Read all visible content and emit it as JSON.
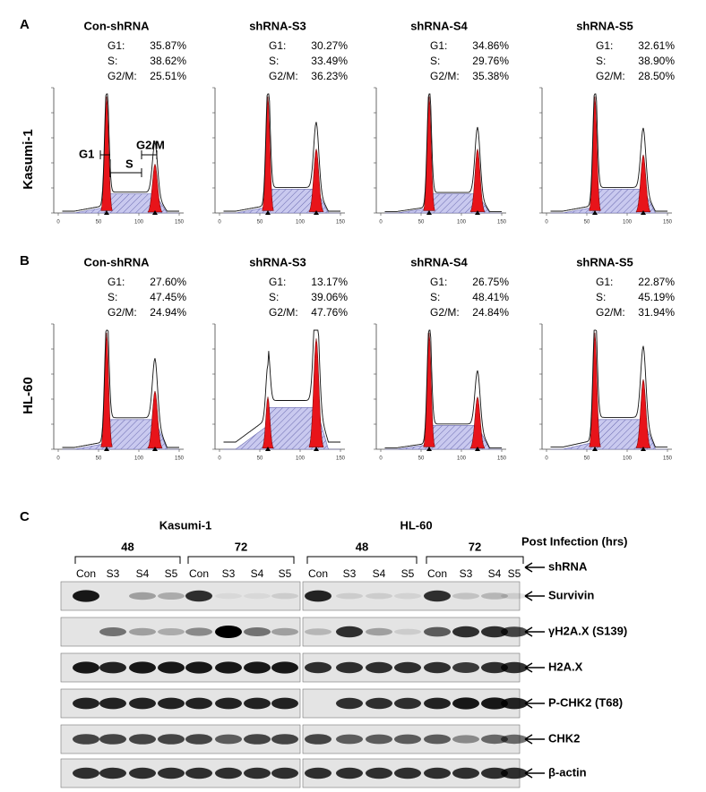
{
  "panel_a": {
    "label": "A",
    "row_label": "Kasumi-1",
    "plots": [
      {
        "title": "Con-shRNA",
        "stats": [
          [
            "G1:",
            "35.87%"
          ],
          [
            "S:",
            "38.62%"
          ],
          [
            "G2/M:",
            "25.51%"
          ]
        ]
      },
      {
        "title": "shRNA-S3",
        "stats": [
          [
            "G1:",
            "30.27%"
          ],
          [
            "S:",
            "33.49%"
          ],
          [
            "G2/M:",
            "36.23%"
          ]
        ]
      },
      {
        "title": "shRNA-S4",
        "stats": [
          [
            "G1:",
            "34.86%"
          ],
          [
            "S:",
            "29.76%"
          ],
          [
            "G2/M:",
            "35.38%"
          ]
        ]
      },
      {
        "title": "shRNA-S5",
        "stats": [
          [
            "G1:",
            "32.61%"
          ],
          [
            "S:",
            "38.90%"
          ],
          [
            "G2/M:",
            "28.50%"
          ]
        ]
      }
    ],
    "annotations": [
      "G1",
      "S",
      "G2/M"
    ]
  },
  "panel_b": {
    "label": "B",
    "row_label": "HL-60",
    "plots": [
      {
        "title": "Con-shRNA",
        "stats": [
          [
            "G1:",
            "27.60%"
          ],
          [
            "S:",
            "47.45%"
          ],
          [
            "G2/M:",
            "24.94%"
          ]
        ]
      },
      {
        "title": "shRNA-S3",
        "stats": [
          [
            "G1:",
            "13.17%"
          ],
          [
            "S:",
            "39.06%"
          ],
          [
            "G2/M:",
            "47.76%"
          ]
        ]
      },
      {
        "title": "shRNA-S4",
        "stats": [
          [
            "G1:",
            "26.75%"
          ],
          [
            "S:",
            "48.41%"
          ],
          [
            "G2/M:",
            "24.84%"
          ]
        ]
      },
      {
        "title": "shRNA-S5",
        "stats": [
          [
            "G1:",
            "22.87%"
          ],
          [
            "S:",
            "45.19%"
          ],
          [
            "G2/M:",
            "31.94%"
          ]
        ]
      }
    ]
  },
  "histogram_x_ticks": [
    "0",
    "50",
    "100",
    "150"
  ],
  "panel_c": {
    "label": "C",
    "post_infection": "Post Infection (hrs)",
    "shrna_label": "shRNA",
    "groups": [
      {
        "cell_line": "Kasumi-1",
        "timepoints": [
          "48",
          "72"
        ],
        "lanes": [
          "Con",
          "S3",
          "S4",
          "S5",
          "Con",
          "S3",
          "S4",
          "S5"
        ]
      },
      {
        "cell_line": "HL-60",
        "timepoints": [
          "48",
          "72"
        ],
        "lanes": [
          "Con",
          "S3",
          "S4",
          "S5",
          "Con",
          "S3",
          "S4",
          "S5"
        ]
      }
    ],
    "proteins": [
      "Survivin",
      "γH2A.X (S139)",
      "H2A.X",
      "P-CHK2 (T68)",
      "CHK2",
      "β-actin"
    ]
  }
}
